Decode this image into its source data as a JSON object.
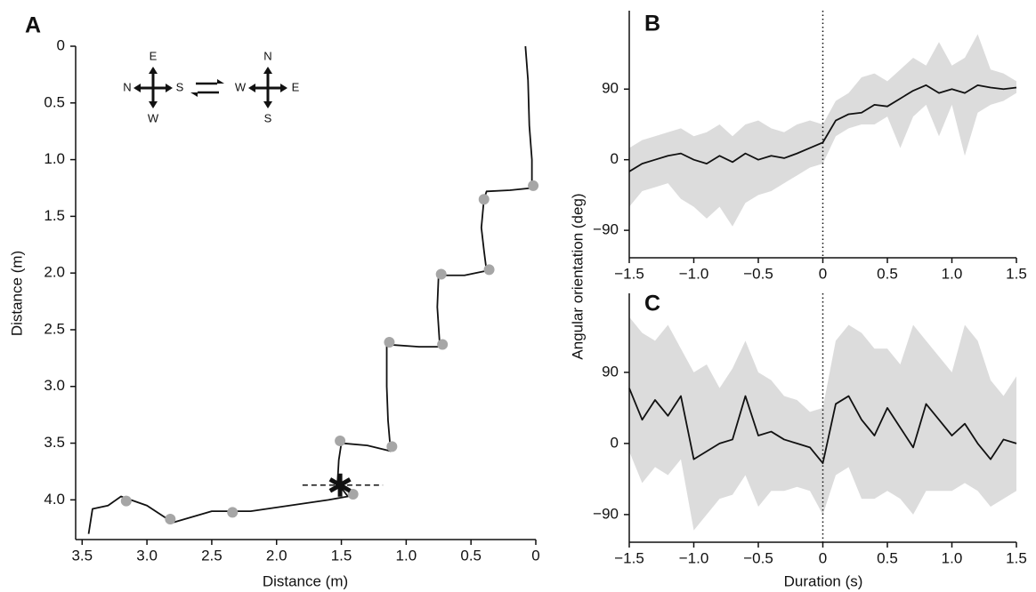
{
  "chart_data": [
    {
      "type": "line",
      "panel": "A",
      "xlabel": "Distance (m)",
      "ylabel": "Distance (m)",
      "xlim": [
        3.55,
        0
      ],
      "ylim": [
        0,
        4.35
      ],
      "xticks": [
        3.5,
        {
          "value": 3,
          "label": "3.0"
        },
        2.5,
        {
          "value": 2,
          "label": "2.0"
        },
        1.5,
        {
          "value": 1,
          "label": "1.0"
        },
        0.5,
        0
      ],
      "yticks": [
        0,
        0.5,
        {
          "value": 1,
          "label": "1.0"
        },
        1.5,
        {
          "value": 2,
          "label": "2.0"
        },
        2.5,
        {
          "value": 3,
          "label": "3.0"
        },
        3.5,
        {
          "value": 4,
          "label": "4.0"
        }
      ],
      "series": [
        {
          "color": "#111111",
          "x": [
            0.08,
            0.06,
            0.05,
            0.03,
            0.03,
            0.2,
            0.38,
            0.4,
            0.42,
            0.4,
            0.38,
            0.55,
            0.75,
            0.76,
            0.74,
            0.9,
            1.15,
            1.15,
            1.14,
            1.12,
            1.3,
            1.5,
            1.52,
            1.53,
            1.45,
            1.6,
            1.9,
            2.2,
            2.5,
            2.8,
            3.0,
            3.2,
            3.3,
            3.42,
            3.45
          ],
          "values": [
            0,
            0.3,
            0.7,
            1.0,
            1.25,
            1.27,
            1.28,
            1.35,
            1.6,
            1.8,
            1.98,
            2.02,
            2.02,
            2.3,
            2.65,
            2.65,
            2.63,
            3.0,
            3.3,
            3.57,
            3.52,
            3.5,
            3.65,
            3.85,
            3.97,
            4.0,
            4.05,
            4.1,
            4.1,
            4.2,
            4.05,
            3.97,
            4.05,
            4.08,
            4.3
          ]
        },
        {
          "type": "scatter",
          "color": "#a6a6a6",
          "x": [
            0.02,
            0.4,
            0.36,
            0.73,
            0.72,
            1.13,
            1.11,
            1.51,
            1.41,
            2.34,
            2.82,
            3.16
          ],
          "values": [
            1.23,
            1.35,
            1.97,
            2.01,
            2.63,
            2.61,
            3.53,
            3.48,
            3.95,
            4.11,
            4.17,
            4.01
          ]
        }
      ],
      "marker": {
        "x": 1.51,
        "y": 3.87
      },
      "reference_segment": {
        "y": 3.87,
        "x": [
          1.8,
          1.18
        ]
      },
      "compass": [
        {
          "top": "E",
          "left": "N",
          "right": "S",
          "bottom": "W"
        },
        {
          "top": "N",
          "left": "W",
          "right": "E",
          "bottom": "S"
        }
      ]
    },
    {
      "type": "band",
      "panel": "B",
      "ylabel": "Angular orientation (deg)",
      "xlim": [
        -1.5,
        1.5
      ],
      "ylim": [
        -125,
        190
      ],
      "xticks": [
        {
          "value": -1.5,
          "label": "−1.5"
        },
        {
          "value": -1,
          "label": "−1.0"
        },
        {
          "value": -0.5,
          "label": "−0.5"
        },
        0,
        0.5,
        {
          "value": 1,
          "label": "1.0"
        },
        1.5
      ],
      "yticks": [
        {
          "value": -90,
          "label": "−90"
        },
        0,
        90
      ],
      "vline": 0,
      "x": [
        -1.5,
        -1.4,
        -1.3,
        -1.2,
        -1.1,
        -1.0,
        -0.9,
        -0.8,
        -0.7,
        -0.6,
        -0.5,
        -0.4,
        -0.3,
        -0.2,
        -0.1,
        0,
        0.1,
        0.2,
        0.3,
        0.4,
        0.5,
        0.6,
        0.7,
        0.8,
        0.9,
        1.0,
        1.1,
        1.2,
        1.3,
        1.4,
        1.5
      ],
      "series": [
        {
          "color": "#111111",
          "values": [
            -15,
            -5,
            0,
            5,
            8,
            0,
            -5,
            5,
            -3,
            8,
            0,
            5,
            2,
            8,
            15,
            22,
            50,
            58,
            60,
            70,
            68,
            78,
            88,
            95,
            85,
            90,
            85,
            95,
            92,
            90,
            92
          ]
        }
      ],
      "band": {
        "color": "#dcdcdc",
        "upper": [
          15,
          25,
          30,
          35,
          40,
          30,
          35,
          45,
          30,
          45,
          50,
          40,
          35,
          45,
          50,
          45,
          75,
          85,
          105,
          110,
          100,
          115,
          130,
          120,
          150,
          120,
          130,
          160,
          115,
          110,
          100
        ],
        "lower": [
          -60,
          -40,
          -35,
          -30,
          -50,
          -60,
          -75,
          -60,
          -85,
          -55,
          -45,
          -40,
          -30,
          -20,
          -10,
          -5,
          30,
          40,
          45,
          45,
          55,
          15,
          55,
          70,
          30,
          70,
          5,
          60,
          70,
          75,
          85
        ]
      }
    },
    {
      "type": "band",
      "panel": "C",
      "xlabel": "Duration (s)",
      "xlim": [
        -1.5,
        1.5
      ],
      "ylim": [
        -125,
        190
      ],
      "xticks": [
        {
          "value": -1.5,
          "label": "−1.5"
        },
        {
          "value": -1,
          "label": "−1.0"
        },
        {
          "value": -0.5,
          "label": "−0.5"
        },
        0,
        0.5,
        {
          "value": 1,
          "label": "1.0"
        },
        1.5
      ],
      "yticks": [
        {
          "value": -90,
          "label": "−90"
        },
        0,
        90
      ],
      "vline": 0,
      "x": [
        -1.5,
        -1.4,
        -1.3,
        -1.2,
        -1.1,
        -1.0,
        -0.9,
        -0.8,
        -0.7,
        -0.6,
        -0.5,
        -0.4,
        -0.3,
        -0.2,
        -0.1,
        0,
        0.1,
        0.2,
        0.3,
        0.4,
        0.5,
        0.6,
        0.7,
        0.8,
        0.9,
        1.0,
        1.1,
        1.2,
        1.3,
        1.4,
        1.5
      ],
      "series": [
        {
          "color": "#111111",
          "values": [
            70,
            30,
            55,
            35,
            60,
            -20,
            -10,
            0,
            5,
            60,
            10,
            15,
            5,
            0,
            -5,
            -25,
            50,
            60,
            30,
            10,
            45,
            20,
            -5,
            50,
            30,
            10,
            25,
            0,
            -20,
            5,
            0
          ]
        }
      ],
      "band": {
        "color": "#dcdcdc",
        "upper": [
          160,
          140,
          130,
          150,
          120,
          90,
          100,
          70,
          95,
          130,
          90,
          80,
          60,
          55,
          40,
          45,
          130,
          150,
          140,
          120,
          120,
          100,
          150,
          130,
          110,
          90,
          150,
          130,
          80,
          60,
          85
        ],
        "lower": [
          -10,
          -50,
          -30,
          -40,
          -20,
          -110,
          -90,
          -70,
          -65,
          -40,
          -80,
          -60,
          -60,
          -55,
          -60,
          -90,
          -40,
          -30,
          -70,
          -70,
          -60,
          -70,
          -90,
          -60,
          -60,
          -60,
          -50,
          -60,
          -80,
          -70,
          -60
        ]
      }
    }
  ]
}
